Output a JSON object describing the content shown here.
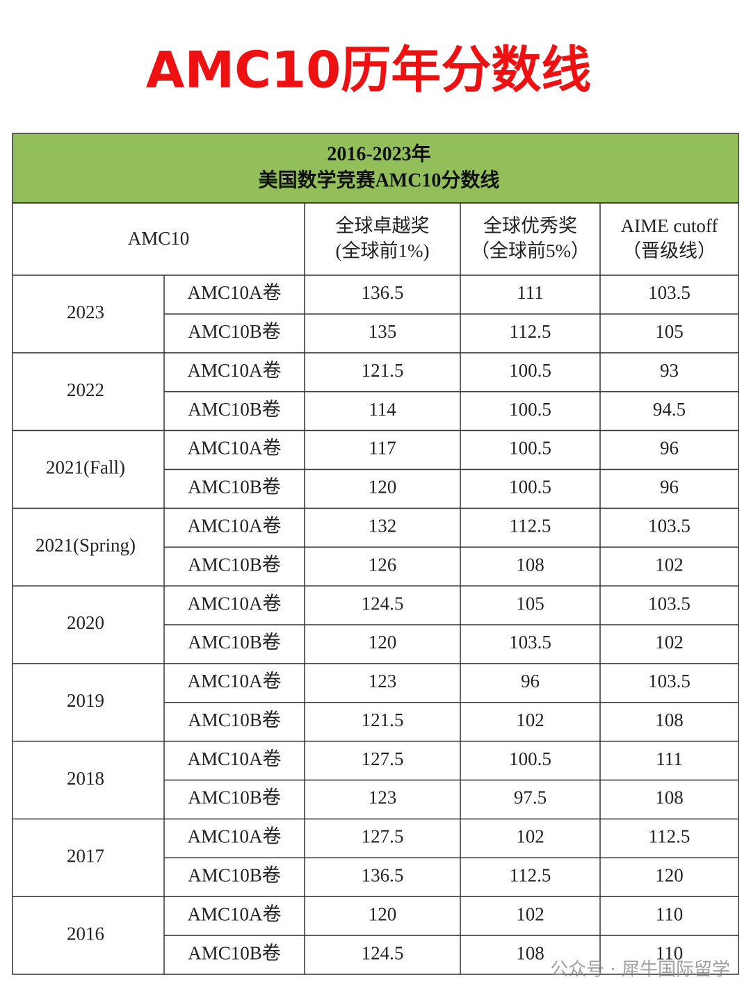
{
  "title": "AMC10历年分数线",
  "table": {
    "caption": [
      "2016-2023年",
      "美国数学竞赛AMC10分数线"
    ],
    "header": {
      "label": "AMC10",
      "columns": [
        [
          "全球卓越奖",
          "(全球前1%)"
        ],
        [
          "全球优秀奖",
          "（全球前5%）"
        ],
        [
          "AIME cutoff",
          "（晋级线）"
        ]
      ]
    },
    "groups": [
      {
        "year": "2023",
        "rows": [
          {
            "paper": "AMC10A卷",
            "values": [
              "136.5",
              "111",
              "103.5"
            ]
          },
          {
            "paper": "AMC10B卷",
            "values": [
              "135",
              "112.5",
              "105"
            ]
          }
        ]
      },
      {
        "year": "2022",
        "rows": [
          {
            "paper": "AMC10A卷",
            "values": [
              "121.5",
              "100.5",
              "93"
            ]
          },
          {
            "paper": "AMC10B卷",
            "values": [
              "114",
              "100.5",
              "94.5"
            ]
          }
        ]
      },
      {
        "year": "2021(Fall)",
        "rows": [
          {
            "paper": "AMC10A卷",
            "values": [
              "117",
              "100.5",
              "96"
            ]
          },
          {
            "paper": "AMC10B卷",
            "values": [
              "120",
              "100.5",
              "96"
            ]
          }
        ]
      },
      {
        "year": "2021(Spring)",
        "rows": [
          {
            "paper": "AMC10A卷",
            "values": [
              "132",
              "112.5",
              "103.5"
            ]
          },
          {
            "paper": "AMC10B卷",
            "values": [
              "126",
              "108",
              "102"
            ]
          }
        ]
      },
      {
        "year": "2020",
        "rows": [
          {
            "paper": "AMC10A卷",
            "values": [
              "124.5",
              "105",
              "103.5"
            ]
          },
          {
            "paper": "AMC10B卷",
            "values": [
              "120",
              "103.5",
              "102"
            ]
          }
        ]
      },
      {
        "year": "2019",
        "rows": [
          {
            "paper": "AMC10A卷",
            "values": [
              "123",
              "96",
              "103.5"
            ]
          },
          {
            "paper": "AMC10B卷",
            "values": [
              "121.5",
              "102",
              "108"
            ]
          }
        ]
      },
      {
        "year": "2018",
        "rows": [
          {
            "paper": "AMC10A卷",
            "values": [
              "127.5",
              "100.5",
              "111"
            ]
          },
          {
            "paper": "AMC10B卷",
            "values": [
              "123",
              "97.5",
              "108"
            ]
          }
        ]
      },
      {
        "year": "2017",
        "rows": [
          {
            "paper": "AMC10A卷",
            "values": [
              "127.5",
              "102",
              "112.5"
            ]
          },
          {
            "paper": "AMC10B卷",
            "values": [
              "136.5",
              "112.5",
              "120"
            ]
          }
        ]
      },
      {
        "year": "2016",
        "rows": [
          {
            "paper": "AMC10A卷",
            "values": [
              "120",
              "102",
              "110"
            ]
          },
          {
            "paper": "AMC10B卷",
            "values": [
              "124.5",
              "108",
              "110"
            ]
          }
        ]
      }
    ]
  },
  "watermark": "公众号 · 犀牛国际留学"
}
